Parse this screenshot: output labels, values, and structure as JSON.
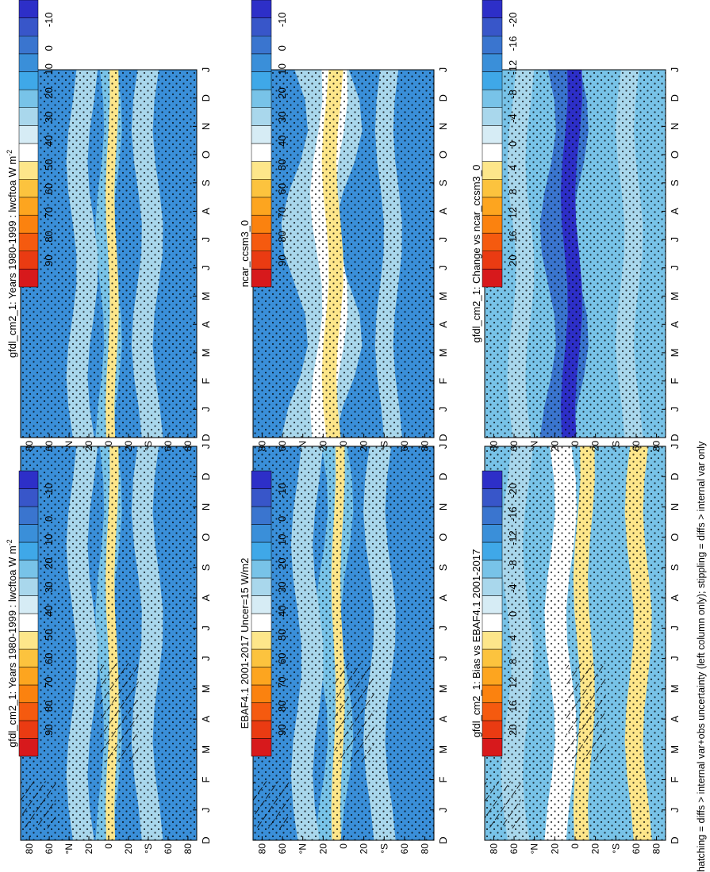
{
  "figure": {
    "footer": "hatching = diffs > internal var+obs uncertainty (left column only); stippling = diffs > internal var only"
  },
  "axes": {
    "months": [
      "D",
      "J",
      "F",
      "M",
      "A",
      "M",
      "J",
      "J",
      "A",
      "S",
      "O",
      "N",
      "D",
      "J"
    ],
    "latitude_ticks": [
      "80",
      "60",
      "°N",
      "20",
      "0",
      "20",
      "°S",
      "60",
      "80"
    ]
  },
  "colorbars": {
    "absolute": {
      "labels": [
        "90",
        "80",
        "70",
        "60",
        "50",
        "40",
        "30",
        "20",
        "10",
        "0",
        "-10"
      ],
      "colors": [
        "#d7191c",
        "#ea3b12",
        "#f55a0f",
        "#fb820f",
        "#fda51f",
        "#fcc33e",
        "#fde68a",
        "#ffffff",
        "#d6ecf5",
        "#a9d7ec",
        "#78c3e8",
        "#3fa8e8",
        "#3a8fd9",
        "#3a75cf",
        "#3856c9",
        "#2d2fc8"
      ]
    },
    "difference": {
      "labels": [
        "20",
        "16",
        "12",
        "8",
        "4",
        "0",
        "-4",
        "-8",
        "-12",
        "-16",
        "-20"
      ],
      "colors": [
        "#d7191c",
        "#ea3b12",
        "#f55a0f",
        "#fb820f",
        "#fda51f",
        "#fcc33e",
        "#fde68a",
        "#ffffff",
        "#d6ecf5",
        "#a9d7ec",
        "#78c3e8",
        "#3fa8e8",
        "#3a8fd9",
        "#3a75cf",
        "#3856c9",
        "#2d2fc8"
      ]
    }
  },
  "panels": [
    {
      "title": "gfdl_cm2_1: Years 1980-1999 : lwcftoa W m",
      "title_sup": "-2",
      "colorbar": "absolute"
    },
    {
      "title": "gfdl_cm2_1: Years 1980-1999 : lwcftoa W m",
      "title_sup": "-2",
      "colorbar": "absolute"
    },
    {
      "title": "EBAF4.1 2001-2017 Uncer=15 W/m2",
      "title_sup": "",
      "colorbar": "absolute"
    },
    {
      "title": "ncar_ccsm3_0",
      "title_sup": "",
      "colorbar": "absolute"
    },
    {
      "title": "gfdl_cm2_1: Bias vs EBAF4.1 2001-2017",
      "title_sup": "",
      "colorbar": "difference"
    },
    {
      "title": "gfdl_cm2_1: Change vs ncar_ccsm3_0",
      "title_sup": "",
      "colorbar": "difference"
    }
  ],
  "chart_data": [
    {
      "type": "heatmap",
      "title": "gfdl_cm2_1: Years 1980-1999 : lwcftoa W m-2",
      "x": [
        "D",
        "J",
        "F",
        "M",
        "A",
        "M",
        "J",
        "J",
        "A",
        "S",
        "O",
        "N",
        "D",
        "J"
      ],
      "y": [
        "80N",
        "60N",
        "20N",
        "0",
        "20S",
        "60S",
        "80S"
      ],
      "zlim": [
        -10,
        90
      ],
      "note": "longwave cloud forcing, zonal mean; max ~50-55 near equator/10N, ~20-30 elsewhere, ~10 near poles"
    },
    {
      "type": "heatmap",
      "title": "gfdl_cm2_1: Years 1980-1999 : lwcftoa W m-2",
      "x": [
        "D",
        "J",
        "F",
        "M",
        "A",
        "M",
        "J",
        "J",
        "A",
        "S",
        "O",
        "N",
        "D",
        "J"
      ],
      "y": [
        "80N",
        "60N",
        "20N",
        "0",
        "20S",
        "60S",
        "80S"
      ],
      "zlim": [
        -10,
        90
      ]
    },
    {
      "type": "heatmap",
      "title": "EBAF4.1 2001-2017 Uncer=15 W/m2",
      "x": [
        "D",
        "J",
        "F",
        "M",
        "A",
        "M",
        "J",
        "J",
        "A",
        "S",
        "O",
        "N",
        "D",
        "J"
      ],
      "y": [
        "80N",
        "60N",
        "20N",
        "0",
        "20S",
        "60S",
        "80S"
      ],
      "zlim": [
        -10,
        90
      ]
    },
    {
      "type": "heatmap",
      "title": "ncar_ccsm3_0",
      "x": [
        "D",
        "J",
        "F",
        "M",
        "A",
        "M",
        "J",
        "J",
        "A",
        "S",
        "O",
        "N",
        "D",
        "J"
      ],
      "y": [
        "80N",
        "60N",
        "20N",
        "0",
        "20S",
        "60S",
        "80S"
      ],
      "zlim": [
        -10,
        90
      ],
      "note": "ITCZ maximum ~55-60 migrating between 5S and 15N"
    },
    {
      "type": "heatmap",
      "title": "gfdl_cm2_1: Bias vs EBAF4.1 2001-2017",
      "x": [
        "D",
        "J",
        "F",
        "M",
        "A",
        "M",
        "J",
        "J",
        "A",
        "S",
        "O",
        "N",
        "D",
        "J"
      ],
      "y": [
        "80N",
        "60N",
        "20N",
        "0",
        "20S",
        "60S",
        "80S"
      ],
      "zlim": [
        -20,
        20
      ]
    },
    {
      "type": "heatmap",
      "title": "gfdl_cm2_1: Change vs ncar_ccsm3_0",
      "x": [
        "D",
        "J",
        "F",
        "M",
        "A",
        "M",
        "J",
        "J",
        "A",
        "S",
        "O",
        "N",
        "D",
        "J"
      ],
      "y": [
        "80N",
        "60N",
        "20N",
        "0",
        "20S",
        "60S",
        "80S"
      ],
      "zlim": [
        -20,
        20
      ],
      "note": "strong negative (~-20) along equatorial band"
    }
  ]
}
